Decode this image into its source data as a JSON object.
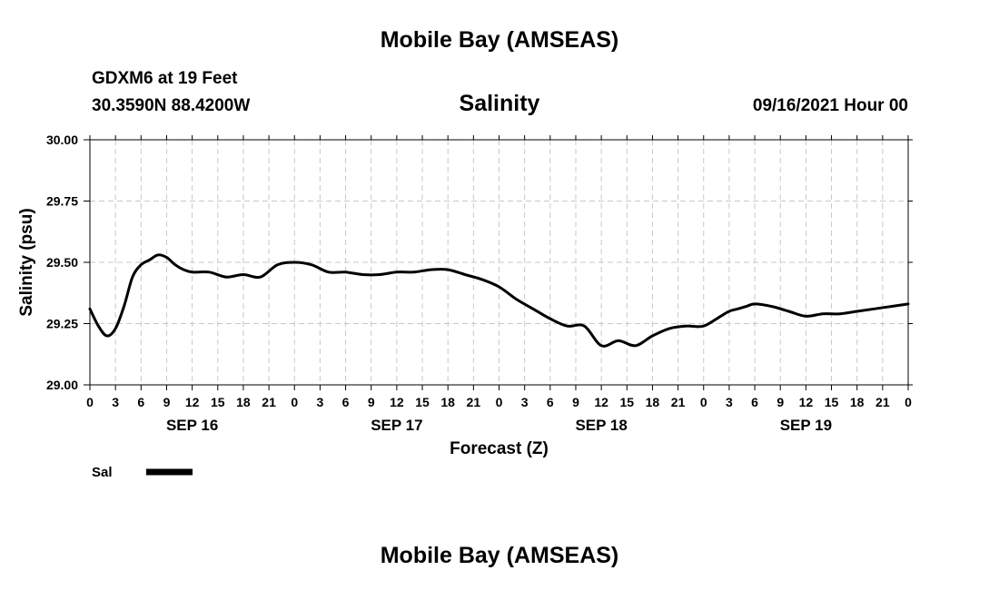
{
  "header": {
    "title": "Mobile Bay (AMSEAS)",
    "station": "GDXM6 at 19 Feet",
    "coords": "30.3590N  88.4200W",
    "datetime": "09/16/2021 Hour 00"
  },
  "footer": {
    "title": "Mobile Bay (AMSEAS)"
  },
  "chart_data": {
    "type": "line",
    "title": "Salinity",
    "xlabel": "Forecast (Z)",
    "ylabel": "Salinity (psu)",
    "ylim": [
      29.0,
      30.0
    ],
    "y_ticks": [
      "29.00",
      "29.25",
      "29.50",
      "29.75",
      "30.00"
    ],
    "xlim": [
      0,
      96
    ],
    "x_tick_labels": [
      "0",
      "3",
      "6",
      "9",
      "12",
      "15",
      "18",
      "21",
      "0",
      "3",
      "6",
      "9",
      "12",
      "15",
      "18",
      "21",
      "0",
      "3",
      "6",
      "9",
      "12",
      "15",
      "18",
      "21",
      "0",
      "3",
      "6",
      "9",
      "12",
      "15",
      "18",
      "21",
      "0"
    ],
    "day_labels": [
      "SEP 16",
      "SEP 17",
      "SEP 18",
      "SEP 19"
    ],
    "grid": true,
    "legend_position": "bottom-left",
    "series": [
      {
        "name": "Sal",
        "color": "#000000",
        "x": [
          0,
          1,
          2,
          3,
          4,
          5,
          6,
          7,
          8,
          9,
          10,
          11,
          12,
          14,
          16,
          18,
          20,
          22,
          24,
          26,
          28,
          30,
          32,
          34,
          36,
          38,
          40,
          42,
          44,
          46,
          48,
          50,
          52,
          54,
          56,
          58,
          60,
          62,
          64,
          66,
          68,
          70,
          72,
          74,
          75,
          76,
          77,
          78,
          80,
          82,
          84,
          86,
          88,
          90,
          92,
          94,
          96
        ],
        "values": [
          29.31,
          29.24,
          29.2,
          29.23,
          29.32,
          29.44,
          29.49,
          29.51,
          29.53,
          29.52,
          29.49,
          29.47,
          29.46,
          29.46,
          29.44,
          29.45,
          29.44,
          29.49,
          29.5,
          29.49,
          29.46,
          29.46,
          29.45,
          29.45,
          29.46,
          29.46,
          29.47,
          29.47,
          29.45,
          29.43,
          29.4,
          29.35,
          29.31,
          29.27,
          29.24,
          29.24,
          29.16,
          29.18,
          29.16,
          29.2,
          29.23,
          29.24,
          29.24,
          29.28,
          29.3,
          29.31,
          29.32,
          29.33,
          29.32,
          29.3,
          29.28,
          29.29,
          29.29,
          29.3,
          29.31,
          29.32,
          29.33
        ]
      }
    ]
  }
}
